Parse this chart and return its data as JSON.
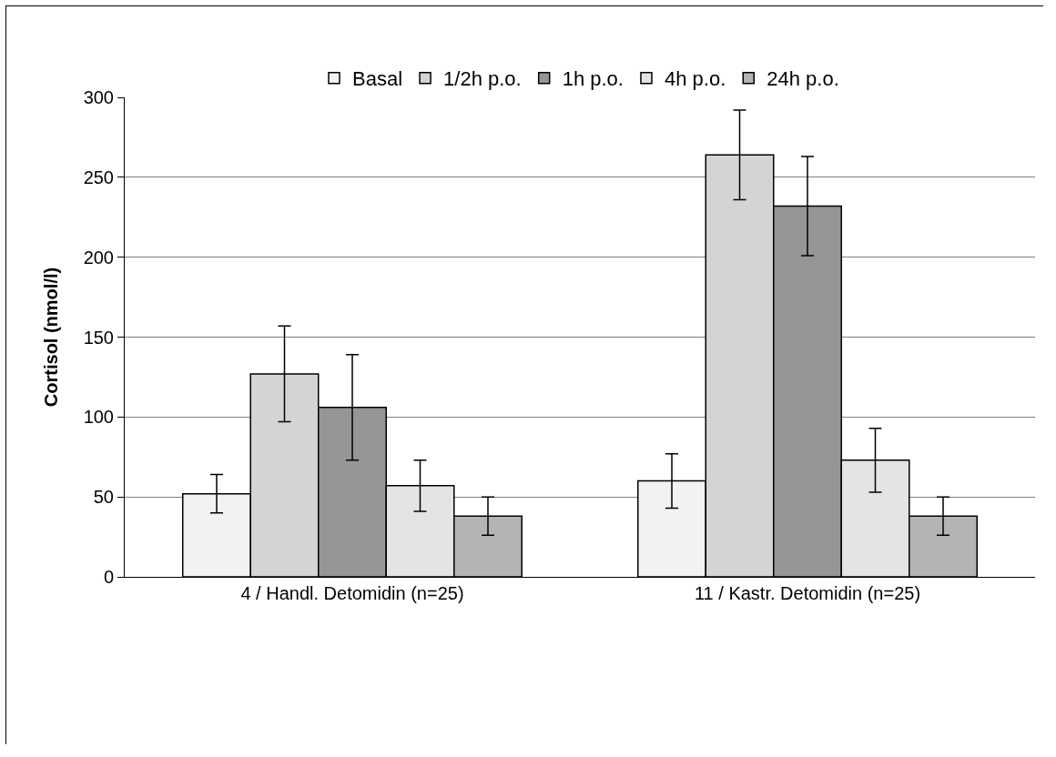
{
  "chart_data": {
    "type": "bar",
    "ylabel": "Cortisol (nmol/l)",
    "categories": [
      "4 / Handl. Detomidin (n=25)",
      "11 / Kastr. Detomidin (n=25)"
    ],
    "series": [
      {
        "name": "Basal",
        "color": "#f2f2f2",
        "values": [
          52,
          60
        ],
        "errors": [
          12,
          17
        ]
      },
      {
        "name": "1/2h p.o.",
        "color": "#d4d4d4",
        "values": [
          127,
          264
        ],
        "errors": [
          30,
          28
        ]
      },
      {
        "name": "1h p.o.",
        "color": "#969696",
        "values": [
          106,
          232
        ],
        "errors": [
          33,
          31
        ]
      },
      {
        "name": "4h p.o.",
        "color": "#e4e4e4",
        "values": [
          57,
          73
        ],
        "errors": [
          16,
          20
        ]
      },
      {
        "name": "24h p.o.",
        "color": "#b4b4b4",
        "values": [
          38,
          38
        ],
        "errors": [
          12,
          12
        ]
      }
    ],
    "ylim": [
      0,
      300
    ],
    "yticks": [
      0,
      50,
      100,
      150,
      200,
      250,
      300
    ],
    "grid": "y",
    "legend": "top"
  }
}
